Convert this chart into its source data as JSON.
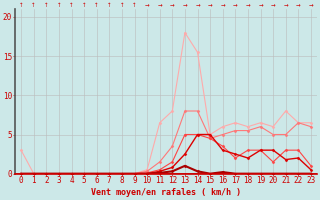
{
  "x": [
    0,
    1,
    2,
    3,
    4,
    5,
    6,
    7,
    8,
    9,
    10,
    11,
    12,
    13,
    14,
    15,
    16,
    17,
    18,
    19,
    20,
    21,
    22,
    23
  ],
  "bg_color": "#cce8e8",
  "grid_color": "#bbbbbb",
  "xlabel": "Vent moyen/en rafales ( km/h )",
  "xlabel_color": "#cc0000",
  "xlabel_fontsize": 6,
  "tick_color": "#cc0000",
  "tick_fontsize": 5.5,
  "ylim": [
    0,
    21
  ],
  "yticks": [
    0,
    5,
    10,
    15,
    20
  ],
  "series": [
    {
      "color": "#ffaaaa",
      "linewidth": 0.8,
      "marker": "D",
      "markersize": 1.5,
      "values": [
        3,
        0,
        0,
        0,
        0,
        0,
        0,
        0,
        0,
        0,
        0.5,
        6.5,
        8,
        18,
        15.5,
        5,
        6,
        6.5,
        6,
        6.5,
        6,
        8,
        6.5,
        6.5
      ]
    },
    {
      "color": "#ff7777",
      "linewidth": 0.8,
      "marker": "D",
      "markersize": 1.5,
      "values": [
        0,
        0,
        0,
        0,
        0,
        0,
        0,
        0,
        0,
        0,
        0.3,
        1.5,
        3.5,
        8,
        8,
        4.5,
        5,
        5.5,
        5.5,
        6,
        5,
        5,
        6.5,
        6
      ]
    },
    {
      "color": "#ff4444",
      "linewidth": 0.8,
      "marker": "D",
      "markersize": 1.5,
      "values": [
        0,
        0,
        0,
        0,
        0,
        0,
        0,
        0,
        0,
        0,
        0.1,
        0.5,
        1.5,
        5,
        5,
        4.5,
        3.5,
        2,
        3,
        3,
        1.5,
        3,
        3,
        1
      ]
    },
    {
      "color": "#dd0000",
      "linewidth": 1.0,
      "marker": "D",
      "markersize": 1.5,
      "values": [
        0,
        0,
        0,
        0,
        0,
        0,
        0,
        0,
        0,
        0,
        0,
        0.3,
        0.8,
        2.5,
        5,
        5,
        3,
        2.5,
        2,
        3,
        3,
        1.8,
        2,
        0.5
      ]
    },
    {
      "color": "#aa0000",
      "linewidth": 1.5,
      "marker": "D",
      "markersize": 1.5,
      "values": [
        0,
        0,
        0,
        0,
        0,
        0,
        0,
        0,
        0,
        0,
        0,
        0.1,
        0.3,
        1,
        0.3,
        0,
        0.2,
        0,
        0,
        0,
        0,
        0,
        0,
        0
      ]
    }
  ],
  "left_spine_color": "#555555",
  "bottom_spine_color": "#cc0000"
}
